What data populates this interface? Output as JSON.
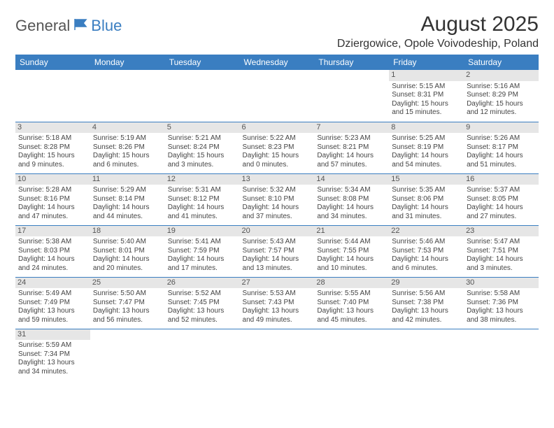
{
  "logo": {
    "part1": "General",
    "part2": "Blue"
  },
  "title": "August 2025",
  "location": "Dziergowice, Opole Voivodeship, Poland",
  "colors": {
    "header_bg": "#3a7ec1",
    "header_fg": "#ffffff",
    "daynum_bg": "#e6e6e6",
    "rule": "#3a7ec1",
    "text": "#444444"
  },
  "weekdays": [
    "Sunday",
    "Monday",
    "Tuesday",
    "Wednesday",
    "Thursday",
    "Friday",
    "Saturday"
  ],
  "weeks": [
    [
      null,
      null,
      null,
      null,
      null,
      {
        "n": "1",
        "sr": "Sunrise: 5:15 AM",
        "ss": "Sunset: 8:31 PM",
        "d1": "Daylight: 15 hours",
        "d2": "and 15 minutes."
      },
      {
        "n": "2",
        "sr": "Sunrise: 5:16 AM",
        "ss": "Sunset: 8:29 PM",
        "d1": "Daylight: 15 hours",
        "d2": "and 12 minutes."
      }
    ],
    [
      {
        "n": "3",
        "sr": "Sunrise: 5:18 AM",
        "ss": "Sunset: 8:28 PM",
        "d1": "Daylight: 15 hours",
        "d2": "and 9 minutes."
      },
      {
        "n": "4",
        "sr": "Sunrise: 5:19 AM",
        "ss": "Sunset: 8:26 PM",
        "d1": "Daylight: 15 hours",
        "d2": "and 6 minutes."
      },
      {
        "n": "5",
        "sr": "Sunrise: 5:21 AM",
        "ss": "Sunset: 8:24 PM",
        "d1": "Daylight: 15 hours",
        "d2": "and 3 minutes."
      },
      {
        "n": "6",
        "sr": "Sunrise: 5:22 AM",
        "ss": "Sunset: 8:23 PM",
        "d1": "Daylight: 15 hours",
        "d2": "and 0 minutes."
      },
      {
        "n": "7",
        "sr": "Sunrise: 5:23 AM",
        "ss": "Sunset: 8:21 PM",
        "d1": "Daylight: 14 hours",
        "d2": "and 57 minutes."
      },
      {
        "n": "8",
        "sr": "Sunrise: 5:25 AM",
        "ss": "Sunset: 8:19 PM",
        "d1": "Daylight: 14 hours",
        "d2": "and 54 minutes."
      },
      {
        "n": "9",
        "sr": "Sunrise: 5:26 AM",
        "ss": "Sunset: 8:17 PM",
        "d1": "Daylight: 14 hours",
        "d2": "and 51 minutes."
      }
    ],
    [
      {
        "n": "10",
        "sr": "Sunrise: 5:28 AM",
        "ss": "Sunset: 8:16 PM",
        "d1": "Daylight: 14 hours",
        "d2": "and 47 minutes."
      },
      {
        "n": "11",
        "sr": "Sunrise: 5:29 AM",
        "ss": "Sunset: 8:14 PM",
        "d1": "Daylight: 14 hours",
        "d2": "and 44 minutes."
      },
      {
        "n": "12",
        "sr": "Sunrise: 5:31 AM",
        "ss": "Sunset: 8:12 PM",
        "d1": "Daylight: 14 hours",
        "d2": "and 41 minutes."
      },
      {
        "n": "13",
        "sr": "Sunrise: 5:32 AM",
        "ss": "Sunset: 8:10 PM",
        "d1": "Daylight: 14 hours",
        "d2": "and 37 minutes."
      },
      {
        "n": "14",
        "sr": "Sunrise: 5:34 AM",
        "ss": "Sunset: 8:08 PM",
        "d1": "Daylight: 14 hours",
        "d2": "and 34 minutes."
      },
      {
        "n": "15",
        "sr": "Sunrise: 5:35 AM",
        "ss": "Sunset: 8:06 PM",
        "d1": "Daylight: 14 hours",
        "d2": "and 31 minutes."
      },
      {
        "n": "16",
        "sr": "Sunrise: 5:37 AM",
        "ss": "Sunset: 8:05 PM",
        "d1": "Daylight: 14 hours",
        "d2": "and 27 minutes."
      }
    ],
    [
      {
        "n": "17",
        "sr": "Sunrise: 5:38 AM",
        "ss": "Sunset: 8:03 PM",
        "d1": "Daylight: 14 hours",
        "d2": "and 24 minutes."
      },
      {
        "n": "18",
        "sr": "Sunrise: 5:40 AM",
        "ss": "Sunset: 8:01 PM",
        "d1": "Daylight: 14 hours",
        "d2": "and 20 minutes."
      },
      {
        "n": "19",
        "sr": "Sunrise: 5:41 AM",
        "ss": "Sunset: 7:59 PM",
        "d1": "Daylight: 14 hours",
        "d2": "and 17 minutes."
      },
      {
        "n": "20",
        "sr": "Sunrise: 5:43 AM",
        "ss": "Sunset: 7:57 PM",
        "d1": "Daylight: 14 hours",
        "d2": "and 13 minutes."
      },
      {
        "n": "21",
        "sr": "Sunrise: 5:44 AM",
        "ss": "Sunset: 7:55 PM",
        "d1": "Daylight: 14 hours",
        "d2": "and 10 minutes."
      },
      {
        "n": "22",
        "sr": "Sunrise: 5:46 AM",
        "ss": "Sunset: 7:53 PM",
        "d1": "Daylight: 14 hours",
        "d2": "and 6 minutes."
      },
      {
        "n": "23",
        "sr": "Sunrise: 5:47 AM",
        "ss": "Sunset: 7:51 PM",
        "d1": "Daylight: 14 hours",
        "d2": "and 3 minutes."
      }
    ],
    [
      {
        "n": "24",
        "sr": "Sunrise: 5:49 AM",
        "ss": "Sunset: 7:49 PM",
        "d1": "Daylight: 13 hours",
        "d2": "and 59 minutes."
      },
      {
        "n": "25",
        "sr": "Sunrise: 5:50 AM",
        "ss": "Sunset: 7:47 PM",
        "d1": "Daylight: 13 hours",
        "d2": "and 56 minutes."
      },
      {
        "n": "26",
        "sr": "Sunrise: 5:52 AM",
        "ss": "Sunset: 7:45 PM",
        "d1": "Daylight: 13 hours",
        "d2": "and 52 minutes."
      },
      {
        "n": "27",
        "sr": "Sunrise: 5:53 AM",
        "ss": "Sunset: 7:43 PM",
        "d1": "Daylight: 13 hours",
        "d2": "and 49 minutes."
      },
      {
        "n": "28",
        "sr": "Sunrise: 5:55 AM",
        "ss": "Sunset: 7:40 PM",
        "d1": "Daylight: 13 hours",
        "d2": "and 45 minutes."
      },
      {
        "n": "29",
        "sr": "Sunrise: 5:56 AM",
        "ss": "Sunset: 7:38 PM",
        "d1": "Daylight: 13 hours",
        "d2": "and 42 minutes."
      },
      {
        "n": "30",
        "sr": "Sunrise: 5:58 AM",
        "ss": "Sunset: 7:36 PM",
        "d1": "Daylight: 13 hours",
        "d2": "and 38 minutes."
      }
    ],
    [
      {
        "n": "31",
        "sr": "Sunrise: 5:59 AM",
        "ss": "Sunset: 7:34 PM",
        "d1": "Daylight: 13 hours",
        "d2": "and 34 minutes."
      },
      null,
      null,
      null,
      null,
      null,
      null
    ]
  ]
}
